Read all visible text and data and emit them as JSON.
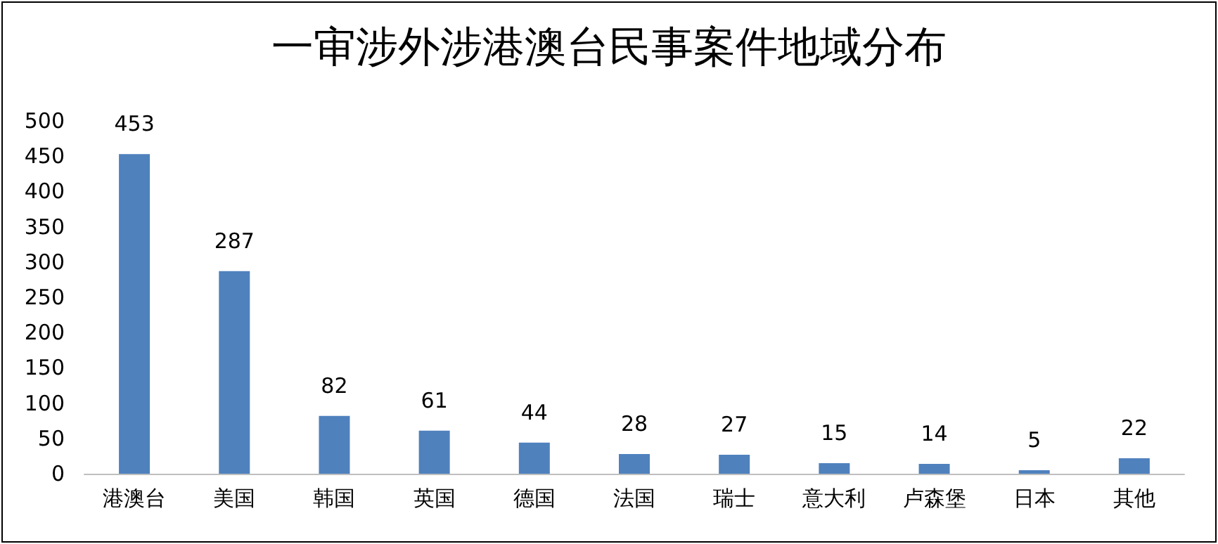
{
  "chart_data": {
    "type": "bar",
    "title": "一审涉外涉港澳台民事案件地域分布",
    "categories": [
      "港澳台",
      "美国",
      "韩国",
      "英国",
      "德国",
      "法国",
      "瑞士",
      "意大利",
      "卢森堡",
      "日本",
      "其他"
    ],
    "values": [
      453,
      287,
      82,
      61,
      44,
      28,
      27,
      15,
      14,
      5,
      22
    ],
    "color": "#4f81bd",
    "ylim": [
      0,
      500
    ],
    "yticks": [
      0,
      50,
      100,
      150,
      200,
      250,
      300,
      350,
      400,
      450,
      500
    ],
    "grid": false,
    "data_labels": true
  }
}
